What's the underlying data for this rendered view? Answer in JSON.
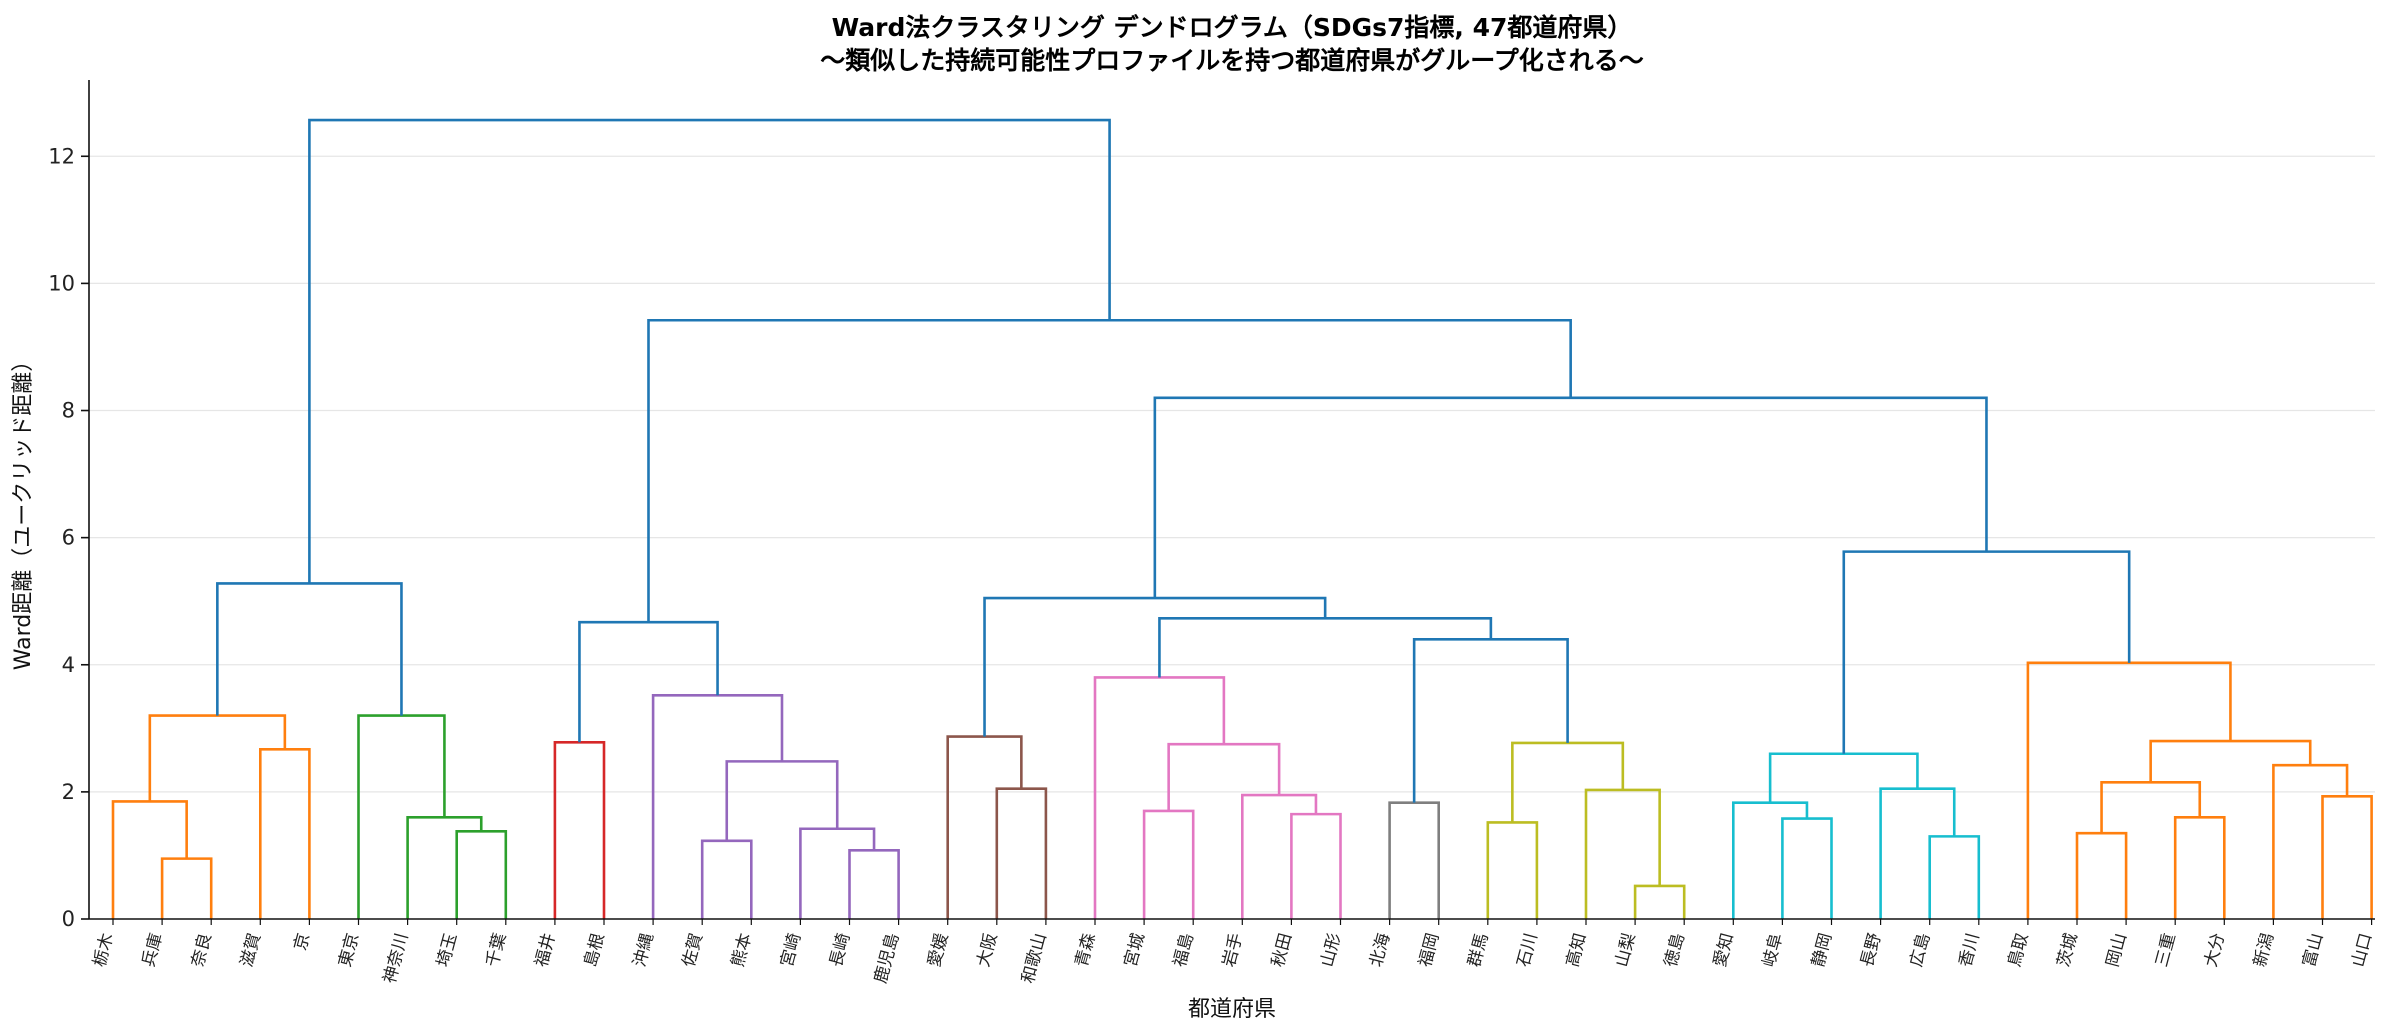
{
  "chart_data": {
    "type": "dendrogram",
    "title": "Ward法クラスタリング デンドログラム（SDGs7指標, 47都道府県）",
    "subtitle": "〜類似した持続可能性プロファイルを持つ都道府県がグループ化される〜",
    "xlabel": "都道府県",
    "ylabel": "Ward距離（ユークリッド距離）",
    "ylim": [
      0,
      13.2
    ],
    "yticks": [
      0,
      2,
      4,
      6,
      8,
      10,
      12
    ],
    "grid": true,
    "leaves": [
      "栃木",
      "兵庫",
      "奈良",
      "滋賀",
      "京",
      "東京",
      "神奈川",
      "埼玉",
      "千葉",
      "福井",
      "島根",
      "沖縄",
      "佐賀",
      "熊本",
      "宮崎",
      "長崎",
      "鹿児島",
      "愛媛",
      "大阪",
      "和歌山",
      "青森",
      "宮城",
      "福島",
      "岩手",
      "秋田",
      "山形",
      "北海",
      "福岡",
      "群馬",
      "石川",
      "高知",
      "山梨",
      "徳島",
      "愛知",
      "岐阜",
      "静岡",
      "長野",
      "広島",
      "香川",
      "鳥取",
      "茨城",
      "岡山",
      "三重",
      "大分",
      "新潟",
      "富山",
      "山口"
    ],
    "merges": [
      {
        "left": 1,
        "right": 2,
        "height": 0.95,
        "color": "#ff7f0e"
      },
      {
        "left": 0,
        "right": "m0",
        "height": 1.85,
        "color": "#ff7f0e"
      },
      {
        "left": 3,
        "right": 4,
        "height": 2.67,
        "color": "#ff7f0e"
      },
      {
        "left": "m1",
        "right": "m2",
        "height": 3.2,
        "color": "#ff7f0e"
      },
      {
        "left": 7,
        "right": 8,
        "height": 1.38,
        "color": "#2ca02c"
      },
      {
        "left": 6,
        "right": "m4",
        "height": 1.6,
        "color": "#2ca02c"
      },
      {
        "left": 5,
        "right": "m5",
        "height": 3.2,
        "color": "#2ca02c"
      },
      {
        "left": "m3",
        "right": "m6",
        "height": 5.28,
        "color": "#1f77b4"
      },
      {
        "left": 9,
        "right": 10,
        "height": 2.78,
        "color": "#d62728"
      },
      {
        "left": 12,
        "right": 13,
        "height": 1.23,
        "color": "#9467bd"
      },
      {
        "left": 15,
        "right": 16,
        "height": 1.08,
        "color": "#9467bd"
      },
      {
        "left": 14,
        "right": "m10",
        "height": 1.42,
        "color": "#9467bd"
      },
      {
        "left": "m9",
        "right": "m11",
        "height": 2.48,
        "color": "#9467bd"
      },
      {
        "left": 11,
        "right": "m12",
        "height": 3.52,
        "color": "#9467bd"
      },
      {
        "left": "m8",
        "right": "m13",
        "height": 4.67,
        "color": "#1f77b4"
      },
      {
        "left": 18,
        "right": 19,
        "height": 2.05,
        "color": "#8c564b"
      },
      {
        "left": 17,
        "right": "m15",
        "height": 2.87,
        "color": "#8c564b"
      },
      {
        "left": 21,
        "right": 22,
        "height": 1.7,
        "color": "#e377c2"
      },
      {
        "left": 24,
        "right": 25,
        "height": 1.65,
        "color": "#e377c2"
      },
      {
        "left": 23,
        "right": "m18",
        "height": 1.95,
        "color": "#e377c2"
      },
      {
        "left": "m17",
        "right": "m19",
        "height": 2.75,
        "color": "#e377c2"
      },
      {
        "left": 20,
        "right": "m20",
        "height": 3.8,
        "color": "#e377c2"
      },
      {
        "left": 26,
        "right": 27,
        "height": 1.83,
        "color": "#7f7f7f"
      },
      {
        "left": 28,
        "right": 29,
        "height": 1.52,
        "color": "#bcbd22"
      },
      {
        "left": 31,
        "right": 32,
        "height": 0.52,
        "color": "#bcbd22"
      },
      {
        "left": 30,
        "right": "m24",
        "height": 2.03,
        "color": "#bcbd22"
      },
      {
        "left": "m23",
        "right": "m25",
        "height": 2.77,
        "color": "#bcbd22"
      },
      {
        "left": "m22",
        "right": "m26",
        "height": 4.4,
        "color": "#1f77b4"
      },
      {
        "left": "m21",
        "right": "m27",
        "height": 4.73,
        "color": "#1f77b4"
      },
      {
        "left": "m16",
        "right": "m28",
        "height": 5.05,
        "color": "#1f77b4"
      },
      {
        "left": 34,
        "right": 35,
        "height": 1.58,
        "color": "#17becf"
      },
      {
        "left": 33,
        "right": "m30",
        "height": 1.83,
        "color": "#17becf"
      },
      {
        "left": 37,
        "right": 38,
        "height": 1.3,
        "color": "#17becf"
      },
      {
        "left": 36,
        "right": "m32",
        "height": 2.05,
        "color": "#17becf"
      },
      {
        "left": "m31",
        "right": "m33",
        "height": 2.6,
        "color": "#17becf"
      },
      {
        "left": 40,
        "right": 41,
        "height": 1.35,
        "color": "#ff7f0e"
      },
      {
        "left": 42,
        "right": 43,
        "height": 1.6,
        "color": "#ff7f0e"
      },
      {
        "left": "m35",
        "right": "m36",
        "height": 2.15,
        "color": "#ff7f0e"
      },
      {
        "left": 45,
        "right": 46,
        "height": 1.93,
        "color": "#ff7f0e"
      },
      {
        "left": 44,
        "right": "m38",
        "height": 2.42,
        "color": "#ff7f0e"
      },
      {
        "left": "m37",
        "right": "m39",
        "height": 2.8,
        "color": "#ff7f0e"
      },
      {
        "left": 39,
        "right": "m40",
        "height": 4.03,
        "color": "#ff7f0e"
      },
      {
        "left": "m34",
        "right": "m41",
        "height": 5.78,
        "color": "#1f77b4"
      },
      {
        "left": "m29",
        "right": "m42",
        "height": 8.2,
        "color": "#1f77b4"
      },
      {
        "left": "m14",
        "right": "m43",
        "height": 9.42,
        "color": "#1f77b4"
      },
      {
        "left": "m7",
        "right": "m44",
        "height": 12.57,
        "color": "#1f77b4"
      }
    ]
  }
}
